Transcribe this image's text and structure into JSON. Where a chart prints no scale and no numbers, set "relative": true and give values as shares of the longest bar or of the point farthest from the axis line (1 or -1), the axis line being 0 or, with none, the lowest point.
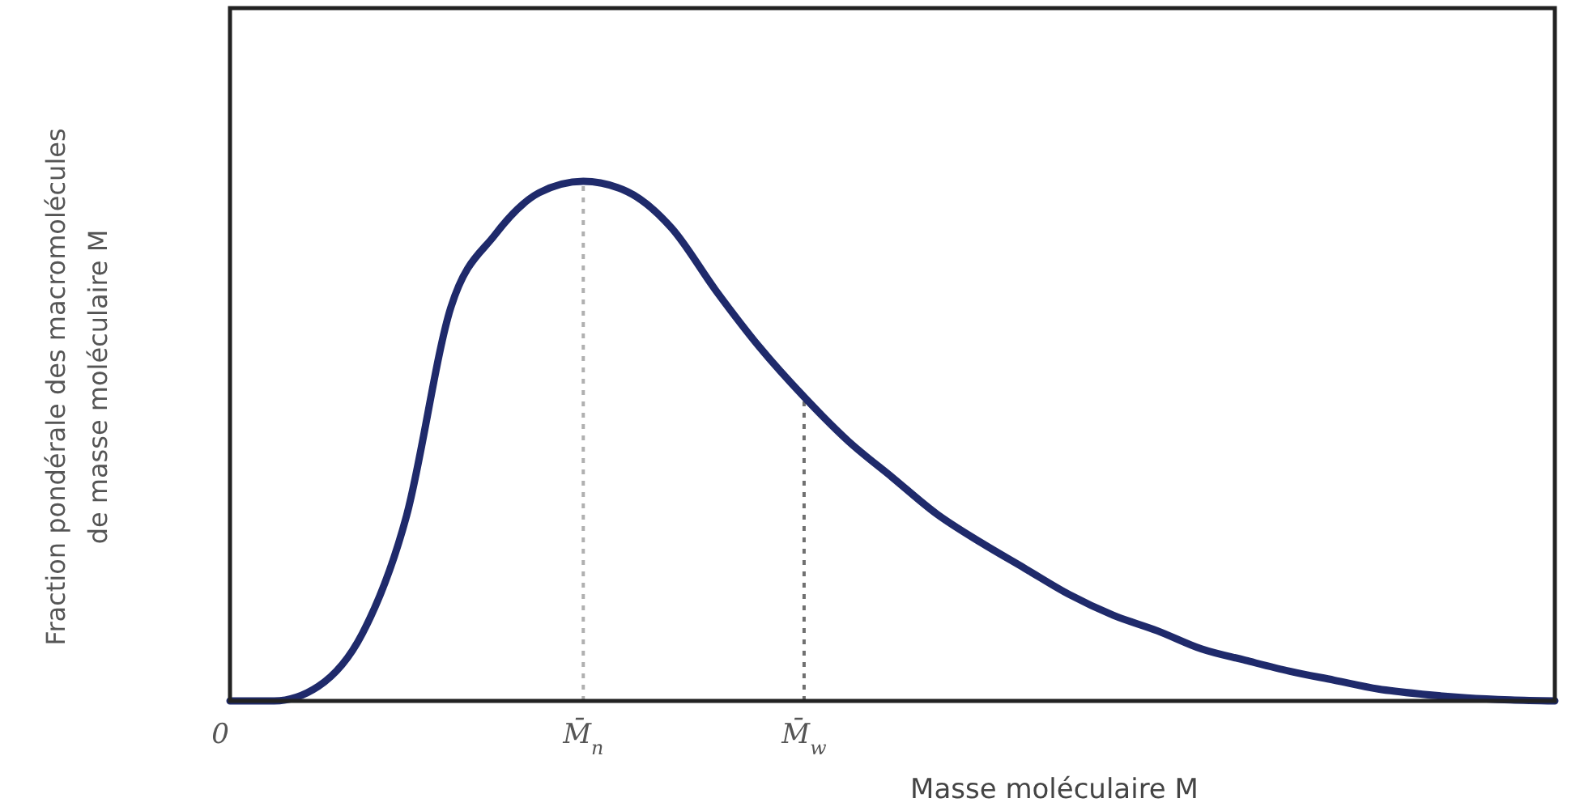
{
  "chart_data": {
    "type": "line",
    "relative": true,
    "xlabel": "Masse moléculaire M",
    "ylabel": "Fraction pondérale des macromolécules\nde masse moléculaire M",
    "categories": [
      "0",
      null,
      null,
      null,
      null,
      null,
      null,
      null,
      "M̄$_{n}$",
      null,
      null,
      null,
      null,
      "M̄$_{w}$",
      null,
      null,
      null,
      null,
      null,
      null,
      null,
      null,
      null,
      null,
      null,
      null,
      null,
      null,
      null,
      null,
      null
    ],
    "tick_labels": "x",
    "ref_lines": [
      {
        "axis": "x",
        "value": "M̄$_{n}$",
        "color": "#b0b0b0",
        "line_style": "dotted"
      },
      {
        "axis": "x",
        "value": "M̄$_{w}$",
        "color": "#707070",
        "line_style": "dotted"
      }
    ],
    "line_style": "solid",
    "series": [
      {
        "color": "#1f2a6b",
        "values": [
          0,
          0,
          0.028,
          0.13,
          0.357,
          0.757,
          0.897,
          0.978,
          1,
          0.98,
          0.91,
          0.79,
          0.68,
          0.585,
          0.5,
          0.43,
          0.36,
          0.305,
          0.255,
          0.205,
          0.165,
          0.135,
          0.1,
          0.078,
          0.057,
          0.04,
          0.023,
          0.013,
          0.006,
          0.002,
          0
        ]
      }
    ]
  }
}
